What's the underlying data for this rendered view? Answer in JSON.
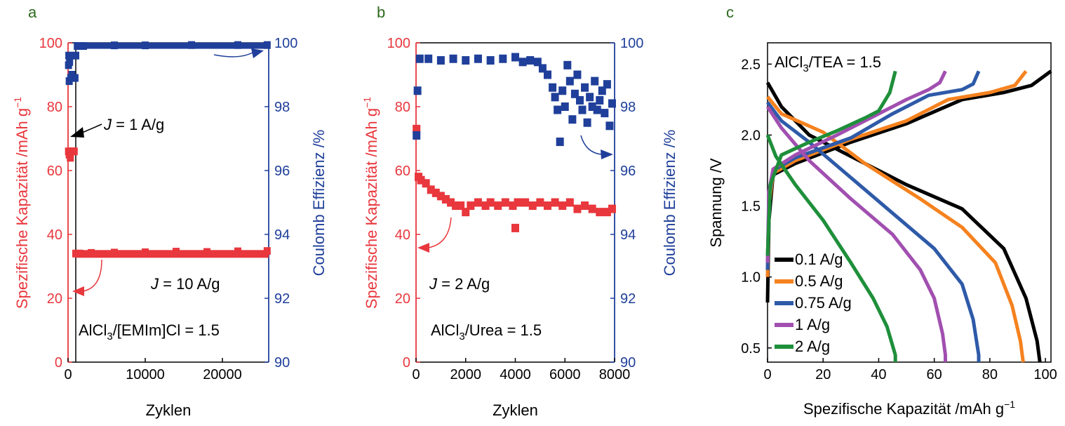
{
  "panel_letters": [
    "a",
    "b",
    "c"
  ],
  "colors": {
    "red": "#e8373d",
    "blue": "#1f3f9a",
    "black": "#000000",
    "orange": "#f5821f",
    "steel": "#2e5aa8",
    "violet": "#a14fb0",
    "green": "#1e8f3a"
  },
  "chart_data": [
    {
      "type": "scatter",
      "xlabel": "Zyklen",
      "ylabel_left": "Spezifische Kapazität  /mAh g",
      "ylabel_left_sup": "−1",
      "ylabel_right": "Coulomb Effizienz /%",
      "xlim": [
        0,
        26000
      ],
      "ylim_left": [
        0,
        100
      ],
      "ylim_right": [
        90,
        100
      ],
      "xticks": [
        0,
        10000,
        20000
      ],
      "yticks_left": [
        0,
        20,
        40,
        60,
        80,
        100
      ],
      "yticks_right": [
        90,
        92,
        94,
        96,
        98,
        100
      ],
      "annotations": {
        "j1_prefix": "J",
        "j1_rest": " = 1 A/g",
        "j10_prefix": "J",
        "j10_rest": " = 10 A/g",
        "electrolyte_a": "AlCl",
        "electrolyte_sub": "3",
        "electrolyte_b": "/[EMIm]Cl = 1.5"
      },
      "series": [
        {
          "axis": "left",
          "points": [
            [
              60,
              66
            ],
            [
              150,
              65
            ],
            [
              300,
              64
            ],
            [
              450,
              66
            ],
            [
              600,
              66
            ],
            [
              800,
              66
            ],
            [
              1000,
              34
            ],
            [
              1500,
              34
            ],
            [
              3000,
              34.2
            ],
            [
              6000,
              34.3
            ],
            [
              10000,
              34.4
            ],
            [
              14000,
              34.6
            ],
            [
              18000,
              34.5
            ],
            [
              22000,
              34.7
            ],
            [
              25800,
              34.8
            ]
          ]
        },
        {
          "axis": "right",
          "points": [
            [
              60,
              99.3
            ],
            [
              100,
              99.6
            ],
            [
              150,
              98.8
            ],
            [
              200,
              99.4
            ],
            [
              350,
              98.9
            ],
            [
              500,
              99.0
            ],
            [
              700,
              98.9
            ],
            [
              900,
              98.9
            ],
            [
              1000,
              99.6
            ],
            [
              1200,
              99.9
            ],
            [
              2000,
              99.9
            ],
            [
              6000,
              99.92
            ],
            [
              10000,
              99.92
            ],
            [
              16000,
              99.93
            ],
            [
              22000,
              99.93
            ],
            [
              25800,
              99.93
            ]
          ]
        }
      ]
    },
    {
      "type": "scatter",
      "xlabel": "Zyklen",
      "ylabel_left": "Spezifische Kapazität  /mAh g",
      "ylabel_left_sup": "−1",
      "ylabel_right": "Coulomb Effizienz /%",
      "xlim": [
        0,
        8000
      ],
      "ylim_left": [
        0,
        100
      ],
      "ylim_right": [
        90,
        100
      ],
      "xticks": [
        0,
        2000,
        4000,
        6000,
        8000
      ],
      "yticks_left": [
        0,
        20,
        40,
        60,
        80,
        100
      ],
      "yticks_right": [
        90,
        92,
        94,
        96,
        98,
        100
      ],
      "annotations": {
        "j_prefix": "J",
        "j_rest": " = 2 A/g",
        "electrolyte_a": "AlCl",
        "electrolyte_sub": "3",
        "electrolyte_b": "/Urea = 1.5"
      },
      "series": [
        {
          "axis": "left",
          "points": [
            [
              20,
              73
            ],
            [
              100,
              58
            ],
            [
              200,
              57
            ],
            [
              400,
              56
            ],
            [
              600,
              54
            ],
            [
              800,
              53
            ],
            [
              1000,
              52
            ],
            [
              1200,
              51
            ],
            [
              1400,
              50
            ],
            [
              1600,
              49
            ],
            [
              1800,
              49
            ],
            [
              2000,
              47
            ],
            [
              2200,
              49
            ],
            [
              2500,
              50
            ],
            [
              2800,
              49
            ],
            [
              3000,
              50
            ],
            [
              3300,
              49
            ],
            [
              3600,
              50
            ],
            [
              3900,
              49
            ],
            [
              4000,
              42
            ],
            [
              4100,
              50
            ],
            [
              4400,
              50
            ],
            [
              4700,
              49
            ],
            [
              5000,
              50
            ],
            [
              5300,
              49
            ],
            [
              5600,
              50
            ],
            [
              5900,
              49
            ],
            [
              6200,
              50
            ],
            [
              6500,
              48
            ],
            [
              6800,
              49
            ],
            [
              7100,
              48
            ],
            [
              7400,
              47
            ],
            [
              7700,
              47
            ],
            [
              7900,
              48
            ]
          ]
        },
        {
          "axis": "right",
          "points": [
            [
              20,
              97.1
            ],
            [
              60,
              98.5
            ],
            [
              150,
              99.5
            ],
            [
              500,
              99.5
            ],
            [
              1000,
              99.45
            ],
            [
              1500,
              99.5
            ],
            [
              2000,
              99.45
            ],
            [
              2500,
              99.5
            ],
            [
              3000,
              99.45
            ],
            [
              3500,
              99.5
            ],
            [
              4000,
              99.55
            ],
            [
              4300,
              99.4
            ],
            [
              4600,
              99.45
            ],
            [
              4900,
              99.4
            ],
            [
              5100,
              99.2
            ],
            [
              5300,
              99.0
            ],
            [
              5500,
              98.6
            ],
            [
              5600,
              98.3
            ],
            [
              5700,
              97.9
            ],
            [
              5800,
              96.9
            ],
            [
              5900,
              98.5
            ],
            [
              6000,
              98.0
            ],
            [
              6100,
              99.3
            ],
            [
              6200,
              98.8
            ],
            [
              6300,
              97.6
            ],
            [
              6400,
              98.4
            ],
            [
              6500,
              99.0
            ],
            [
              6600,
              98.2
            ],
            [
              6700,
              97.9
            ],
            [
              6800,
              98.6
            ],
            [
              6900,
              97.5
            ],
            [
              7000,
              98.3
            ],
            [
              7100,
              98.0
            ],
            [
              7200,
              98.8
            ],
            [
              7300,
              97.9
            ],
            [
              7400,
              98.2
            ],
            [
              7500,
              98.5
            ],
            [
              7600,
              97.8
            ],
            [
              7700,
              98.7
            ],
            [
              7800,
              97.4
            ],
            [
              7900,
              98.1
            ]
          ]
        }
      ]
    },
    {
      "type": "line",
      "xlabel": "Spezifische Kapazität /mAh g",
      "xlabel_sup": "−1",
      "ylabel": "Spannung /V",
      "xlim": [
        0,
        102
      ],
      "ylim": [
        0.4,
        2.65
      ],
      "xticks": [
        0,
        20,
        40,
        60,
        80,
        100
      ],
      "yticks": [
        0.5,
        1.0,
        1.5,
        2.0,
        2.5
      ],
      "yticklabels": [
        "0.5",
        "1.0",
        "1.5",
        "2.0",
        "2.5"
      ],
      "title_a": "AlCl",
      "title_sub": "3",
      "title_b": "/TEA = 1.5",
      "legend_position": "bottom-left",
      "series": [
        {
          "name": "0.1 A/g",
          "color": "#000000",
          "charge": [
            [
              0,
              0.82
            ],
            [
              0.5,
              1.4
            ],
            [
              2,
              1.72
            ],
            [
              10,
              1.8
            ],
            [
              30,
              1.95
            ],
            [
              50,
              2.08
            ],
            [
              70,
              2.25
            ],
            [
              85,
              2.3
            ],
            [
              95,
              2.35
            ],
            [
              102,
              2.45
            ]
          ],
          "discharge": [
            [
              0,
              2.37
            ],
            [
              5,
              2.2
            ],
            [
              15,
              2.0
            ],
            [
              30,
              1.85
            ],
            [
              50,
              1.65
            ],
            [
              70,
              1.48
            ],
            [
              85,
              1.2
            ],
            [
              93,
              0.85
            ],
            [
              97,
              0.55
            ],
            [
              98,
              0.4
            ]
          ]
        },
        {
          "name": "0.5 A/g",
          "color": "#f5821f",
          "charge": [
            [
              0,
              1.0
            ],
            [
              0.5,
              1.5
            ],
            [
              2,
              1.73
            ],
            [
              10,
              1.82
            ],
            [
              30,
              1.97
            ],
            [
              50,
              2.1
            ],
            [
              65,
              2.25
            ],
            [
              80,
              2.3
            ],
            [
              89,
              2.35
            ],
            [
              93,
              2.45
            ]
          ],
          "discharge": [
            [
              0,
              2.27
            ],
            [
              5,
              2.15
            ],
            [
              20,
              2.02
            ],
            [
              35,
              1.8
            ],
            [
              55,
              1.55
            ],
            [
              70,
              1.35
            ],
            [
              82,
              1.1
            ],
            [
              88,
              0.8
            ],
            [
              91,
              0.55
            ],
            [
              92,
              0.4
            ]
          ]
        },
        {
          "name": "0.75 A/g",
          "color": "#2e5aa8",
          "charge": [
            [
              0,
              1.05
            ],
            [
              0.5,
              1.55
            ],
            [
              2,
              1.75
            ],
            [
              10,
              1.84
            ],
            [
              30,
              1.98
            ],
            [
              45,
              2.15
            ],
            [
              58,
              2.28
            ],
            [
              70,
              2.32
            ],
            [
              74,
              2.36
            ],
            [
              76,
              2.45
            ]
          ],
          "discharge": [
            [
              0,
              2.23
            ],
            [
              5,
              2.1
            ],
            [
              15,
              1.95
            ],
            [
              30,
              1.7
            ],
            [
              45,
              1.45
            ],
            [
              60,
              1.2
            ],
            [
              70,
              0.95
            ],
            [
              74,
              0.7
            ],
            [
              76,
              0.45
            ],
            [
              76,
              0.4
            ]
          ]
        },
        {
          "name": "1 A/g",
          "color": "#a14fb0",
          "charge": [
            [
              0,
              1.1
            ],
            [
              0.5,
              1.6
            ],
            [
              2,
              1.76
            ],
            [
              10,
              1.86
            ],
            [
              25,
              2.0
            ],
            [
              40,
              2.15
            ],
            [
              50,
              2.25
            ],
            [
              58,
              2.32
            ],
            [
              62,
              2.37
            ],
            [
              64,
              2.45
            ]
          ],
          "discharge": [
            [
              0,
              2.2
            ],
            [
              5,
              2.05
            ],
            [
              15,
              1.82
            ],
            [
              30,
              1.55
            ],
            [
              45,
              1.3
            ],
            [
              55,
              1.05
            ],
            [
              60,
              0.85
            ],
            [
              63,
              0.6
            ],
            [
              64,
              0.45
            ],
            [
              64,
              0.4
            ]
          ]
        },
        {
          "name": "2 A/g",
          "color": "#1e8f3a",
          "charge": [
            [
              0,
              1.15
            ],
            [
              1,
              1.65
            ],
            [
              5,
              1.86
            ],
            [
              15,
              1.95
            ],
            [
              25,
              2.03
            ],
            [
              35,
              2.12
            ],
            [
              40,
              2.17
            ],
            [
              44,
              2.3
            ],
            [
              46,
              2.45
            ]
          ],
          "discharge": [
            [
              0,
              2.0
            ],
            [
              3,
              1.85
            ],
            [
              10,
              1.65
            ],
            [
              20,
              1.4
            ],
            [
              30,
              1.1
            ],
            [
              38,
              0.85
            ],
            [
              43,
              0.65
            ],
            [
              46,
              0.45
            ],
            [
              46,
              0.4
            ]
          ]
        }
      ]
    }
  ]
}
